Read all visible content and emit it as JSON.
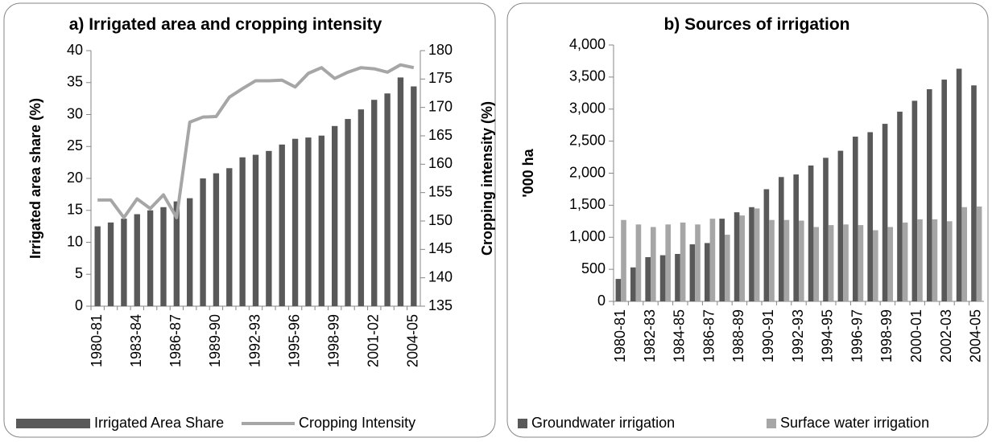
{
  "chart_data": [
    {
      "type": "bar-line",
      "title": "a) Irrigated area and cropping intensity",
      "y_label": "Irrigated area share (%)",
      "y2_label": "Cropping intensity (%)",
      "categories": [
        "1980-81",
        null,
        null,
        "1983-84",
        null,
        null,
        "1986-87",
        null,
        null,
        "1989-90",
        null,
        null,
        "1992-93",
        null,
        null,
        "1995-96",
        null,
        null,
        "1998-99",
        null,
        null,
        "2001-02",
        null,
        null,
        "2004-05"
      ],
      "series": [
        {
          "name": "Irrigated Area Share",
          "type": "bar",
          "color": "#595959",
          "axis": "y",
          "values": [
            12.5,
            13.1,
            13.7,
            14.4,
            15.0,
            15.5,
            16.4,
            16.9,
            20.0,
            20.8,
            21.6,
            23.3,
            23.7,
            24.3,
            25.3,
            26.2,
            26.4,
            26.7,
            28.2,
            29.3,
            30.8,
            32.3,
            33.3,
            35.8,
            34.4
          ]
        },
        {
          "name": "Cropping Intensity",
          "type": "line",
          "color": "#a6a6a6",
          "axis": "y2",
          "values": [
            153.7,
            153.7,
            150.6,
            153.9,
            152.2,
            154.6,
            150.6,
            167.4,
            168.3,
            168.4,
            171.8,
            173.3,
            174.7,
            174.7,
            174.8,
            173.6,
            176.0,
            177.0,
            175.1,
            176.2,
            177.0,
            176.8,
            176.2,
            177.5,
            177.0
          ]
        }
      ],
      "ylim": [
        0,
        40
      ],
      "yticks": [
        0,
        5,
        10,
        15,
        20,
        25,
        30,
        35,
        40
      ],
      "y2lim": [
        135,
        180
      ],
      "y2ticks": [
        135,
        140,
        145,
        150,
        155,
        160,
        165,
        170,
        175,
        180
      ],
      "grid": false,
      "legend": "bottom"
    },
    {
      "type": "bar",
      "title": "b) Sources of irrigation",
      "y_label": "'000 ha",
      "categories": [
        "1980-81",
        null,
        "1982-83",
        null,
        "1984-85",
        null,
        "1986-87",
        null,
        "1988-89",
        null,
        "1990-91",
        null,
        "1992-93",
        null,
        "1994-95",
        null,
        "1996-97",
        null,
        "1998-99",
        null,
        "2000-01",
        null,
        "2002-03",
        null,
        "2004-05"
      ],
      "series": [
        {
          "name": "Groundwater irrigation",
          "color": "#595959",
          "values": [
            350,
            530,
            690,
            720,
            740,
            890,
            910,
            1290,
            1390,
            1470,
            1750,
            1940,
            1980,
            2120,
            2240,
            2350,
            2570,
            2640,
            2770,
            2960,
            3130,
            3310,
            3460,
            3630,
            3370
          ]
        },
        {
          "name": "Surface water irrigation",
          "color": "#a6a6a6",
          "values": [
            1270,
            1200,
            1160,
            1200,
            1230,
            1200,
            1290,
            1040,
            1340,
            1450,
            1270,
            1270,
            1260,
            1160,
            1190,
            1200,
            1190,
            1110,
            1160,
            1230,
            1280,
            1280,
            1250,
            1470,
            1480
          ]
        }
      ],
      "ylim": [
        0,
        4000
      ],
      "yticks": [
        0,
        500,
        {
          "value": 1000,
          "label": "1,000"
        },
        {
          "value": 1500,
          "label": "1,500"
        },
        {
          "value": 2000,
          "label": "2,000"
        },
        {
          "value": 2500,
          "label": "2,500"
        },
        {
          "value": 3000,
          "label": "3,000"
        },
        {
          "value": 3500,
          "label": "3,500"
        },
        {
          "value": 4000,
          "label": "4,000"
        }
      ],
      "grid": false,
      "legend": "bottom"
    }
  ]
}
